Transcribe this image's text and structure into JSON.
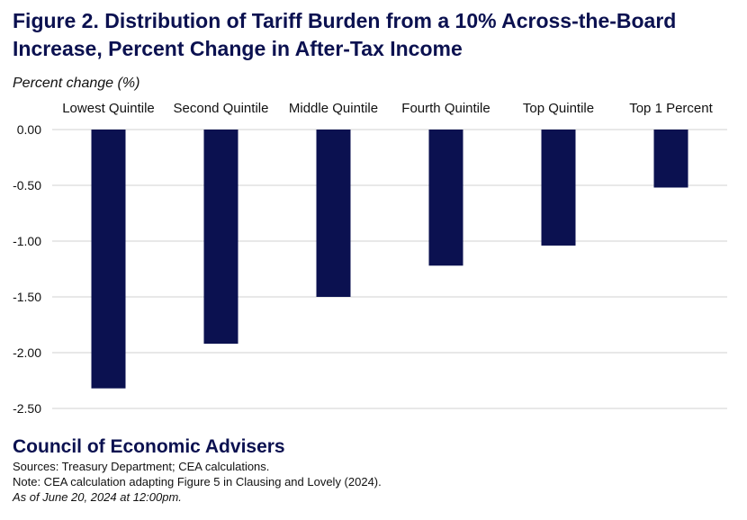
{
  "title": "Figure 2. Distribution of Tariff Burden from a 10% Across-the-Board Increase, Percent Change in After-Tax Income",
  "colors": {
    "bar": "#0b1150",
    "title": "#0b1150",
    "grid": "#d0d0d0"
  },
  "chart_data": {
    "type": "bar",
    "title": "Figure 2. Distribution of Tariff Burden from a 10% Across-the-Board Increase, Percent Change in After-Tax Income",
    "xlabel": "",
    "ylabel": "Percent change (%)",
    "categories": [
      "Lowest Quintile",
      "Second Quintile",
      "Middle Quintile",
      "Fourth Quintile",
      "Top Quintile",
      "Top 1 Percent"
    ],
    "values": [
      -2.32,
      -1.92,
      -1.5,
      -1.22,
      -1.04,
      -0.52
    ],
    "ylim": [
      -2.5,
      0
    ],
    "yticks": [
      "0.00",
      "-0.50",
      "-1.00",
      "-1.50",
      "-2.00",
      "-2.50"
    ],
    "ytick_values": [
      0,
      -0.5,
      -1,
      -1.5,
      -2,
      -2.5
    ],
    "category_axis_position": "top",
    "grid": true,
    "legend": "none"
  },
  "footer": {
    "agency": "Council of Economic Advisers",
    "sources": "Sources: Treasury Department; CEA calculations.",
    "note": "Note: CEA calculation adapting Figure 5 in Clausing and Lovely (2024).",
    "asof": "As of June 20, 2024 at 12:00pm."
  }
}
